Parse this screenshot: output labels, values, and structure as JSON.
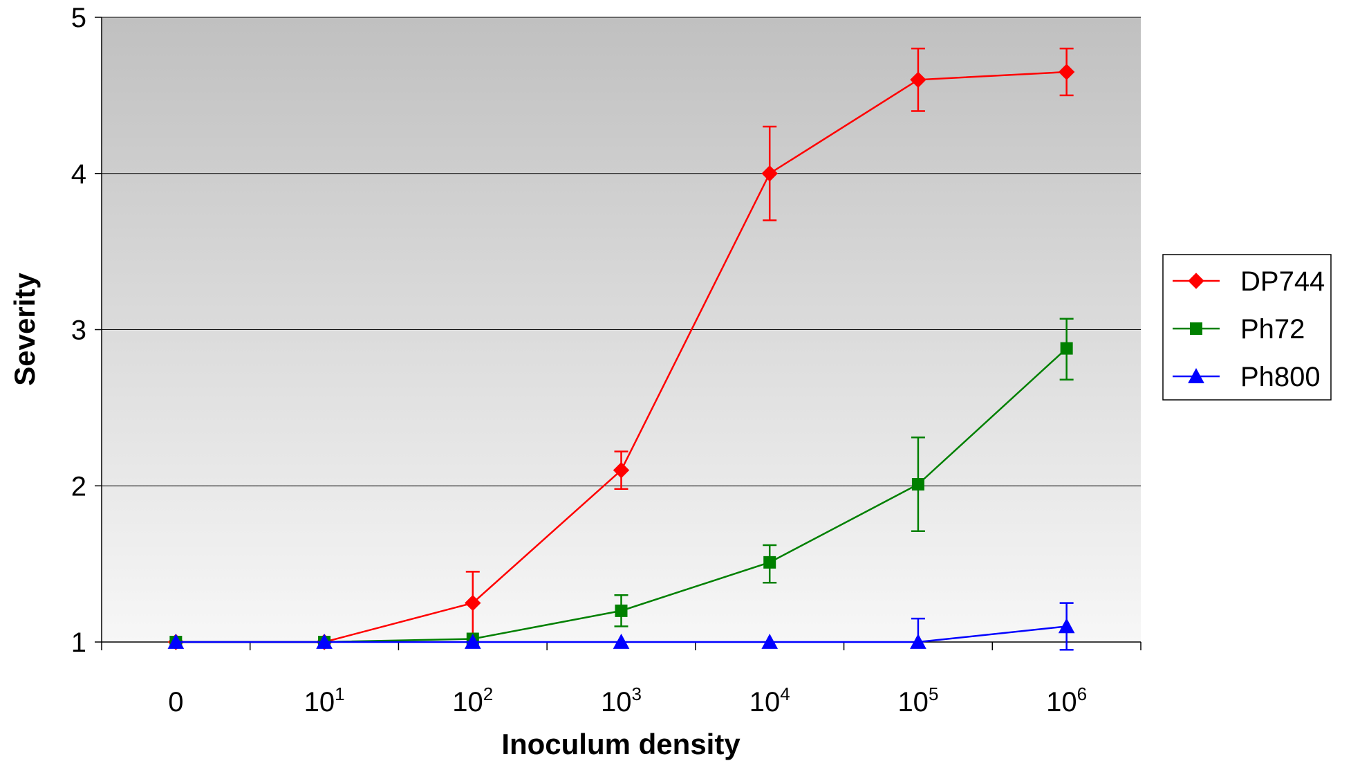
{
  "chart_data": {
    "type": "line",
    "title": "",
    "xlabel": "Inoculum density",
    "ylabel": "Severity",
    "categories": [
      {
        "base": "0",
        "exp": ""
      },
      {
        "base": "10",
        "exp": "1"
      },
      {
        "base": "10",
        "exp": "2"
      },
      {
        "base": "10",
        "exp": "3"
      },
      {
        "base": "10",
        "exp": "4"
      },
      {
        "base": "10",
        "exp": "5"
      },
      {
        "base": "10",
        "exp": "6"
      }
    ],
    "ylim": [
      1,
      5
    ],
    "yticks": [
      "1",
      "2",
      "3",
      "4",
      "5"
    ],
    "grid": true,
    "legend_position": "right",
    "series": [
      {
        "name": "DP744",
        "color": "#ff0000",
        "marker": "diamond",
        "values": [
          1.0,
          1.0,
          1.25,
          2.1,
          4.0,
          4.6,
          4.65
        ],
        "err_up": [
          0,
          0,
          0.2,
          0.12,
          0.3,
          0.2,
          0.15
        ],
        "err_down": [
          0,
          0,
          0.25,
          0.12,
          0.3,
          0.2,
          0.15
        ]
      },
      {
        "name": "Ph72",
        "color": "#008000",
        "marker": "square",
        "values": [
          1.0,
          1.0,
          1.02,
          1.2,
          1.51,
          2.01,
          2.88
        ],
        "err_up": [
          0,
          0,
          0,
          0.1,
          0.11,
          0.3,
          0.19
        ],
        "err_down": [
          0,
          0,
          0,
          0.1,
          0.13,
          0.3,
          0.2
        ]
      },
      {
        "name": "Ph800",
        "color": "#0000ff",
        "marker": "triangle",
        "values": [
          1.0,
          1.0,
          1.0,
          1.0,
          1.0,
          1.0,
          1.1
        ],
        "err_up": [
          0,
          0,
          0,
          0,
          0,
          0.15,
          0.15
        ],
        "err_down": [
          0,
          0,
          0,
          0,
          0,
          0,
          0.15
        ]
      }
    ]
  }
}
